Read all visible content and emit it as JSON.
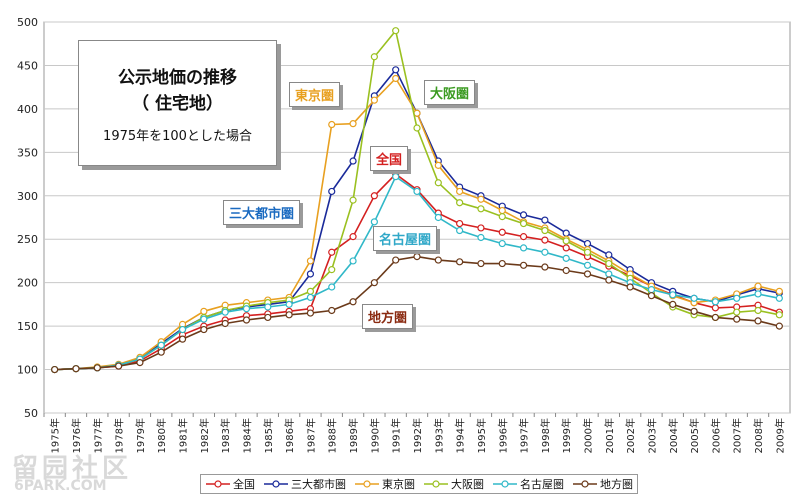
{
  "chart_data": {
    "type": "line",
    "title": "公示地価の推移",
    "subtitle": "（ 住宅地）",
    "note": "1975年を100とした場合",
    "categories": [
      "1975年",
      "1976年",
      "1977年",
      "1978年",
      "1979年",
      "1980年",
      "1981年",
      "1982年",
      "1983年",
      "1984年",
      "1985年",
      "1986年",
      "1987年",
      "1988年",
      "1989年",
      "1990年",
      "1991年",
      "1992年",
      "1993年",
      "1994年",
      "1995年",
      "1996年",
      "1997年",
      "1998年",
      "1999年",
      "2000年",
      "2001年",
      "2002年",
      "2003年",
      "2004年",
      "2005年",
      "2006年",
      "2007年",
      "2008年",
      "2009年"
    ],
    "ylim": [
      50,
      500
    ],
    "yticks": [
      50,
      100,
      150,
      200,
      250,
      300,
      350,
      400,
      450,
      500
    ],
    "grid": true,
    "legend_position": "bottom",
    "series": [
      {
        "name": "全国",
        "color": "#d42020",
        "values": [
          100,
          101,
          102,
          104,
          110,
          124,
          140,
          150,
          157,
          162,
          164,
          167,
          170,
          235,
          253,
          300,
          325,
          307,
          280,
          268,
          263,
          258,
          253,
          249,
          240,
          230,
          219,
          208,
          196,
          186,
          177,
          171,
          172,
          174,
          166
        ]
      },
      {
        "name": "三大都市圏",
        "color": "#1a2a9a",
        "values": [
          100,
          101,
          102,
          105,
          113,
          130,
          147,
          160,
          168,
          172,
          175,
          178,
          210,
          305,
          340,
          415,
          445,
          395,
          340,
          310,
          300,
          288,
          278,
          272,
          257,
          245,
          232,
          215,
          200,
          190,
          182,
          178,
          186,
          193,
          188
        ]
      },
      {
        "name": "東京圏",
        "color": "#e8a020",
        "values": [
          100,
          101,
          103,
          106,
          114,
          132,
          152,
          167,
          174,
          177,
          180,
          183,
          225,
          382,
          383,
          410,
          435,
          395,
          335,
          305,
          296,
          283,
          270,
          263,
          250,
          238,
          225,
          210,
          196,
          185,
          177,
          180,
          187,
          196,
          190
        ]
      },
      {
        "name": "大阪圏",
        "color": "#9ac020",
        "values": [
          100,
          101,
          102,
          105,
          112,
          128,
          146,
          160,
          168,
          173,
          177,
          180,
          190,
          215,
          295,
          460,
          490,
          378,
          315,
          292,
          285,
          276,
          268,
          260,
          248,
          235,
          222,
          205,
          188,
          172,
          163,
          160,
          166,
          168,
          163
        ]
      },
      {
        "name": "名古屋圏",
        "color": "#30b8c8",
        "values": [
          100,
          101,
          102,
          105,
          112,
          128,
          146,
          158,
          166,
          170,
          172,
          175,
          183,
          195,
          225,
          270,
          322,
          305,
          275,
          260,
          252,
          245,
          240,
          235,
          228,
          220,
          210,
          200,
          192,
          186,
          182,
          178,
          182,
          187,
          182
        ]
      },
      {
        "name": "地方圏",
        "color": "#6b3a1a",
        "values": [
          100,
          101,
          102,
          104,
          108,
          120,
          135,
          146,
          153,
          157,
          160,
          163,
          165,
          168,
          178,
          200,
          226,
          230,
          226,
          224,
          222,
          222,
          220,
          218,
          214,
          210,
          203,
          195,
          185,
          175,
          167,
          160,
          158,
          156,
          150
        ]
      }
    ],
    "annotations": {
      "tokyo": "東京圏",
      "osaka": "大阪圏",
      "zenkoku": "全国",
      "sandai": "三大都市圏",
      "nagoya": "名古屋圏",
      "chiho": "地方圏"
    }
  },
  "watermark": {
    "cn": "留园社区",
    "en": "6PARK.COM"
  }
}
